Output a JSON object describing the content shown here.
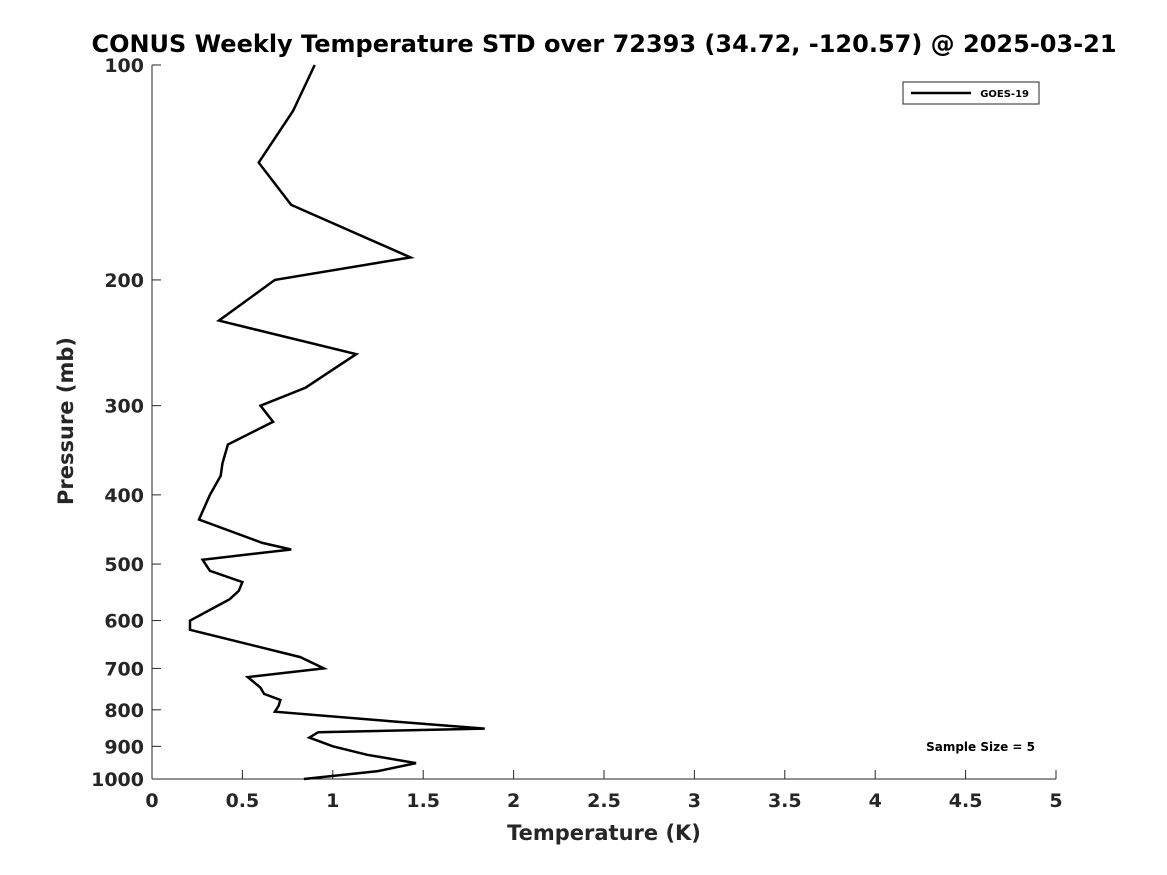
{
  "chart_data": {
    "type": "line",
    "title": "CONUS Weekly Temperature STD over 72393 (34.72, -120.57) @ 2025-03-21",
    "xlabel": "Temperature (K)",
    "ylabel": "Pressure (mb)",
    "xlim": [
      0,
      5
    ],
    "ylim": [
      100,
      1000
    ],
    "yscale": "log",
    "y_reversed": true,
    "xticks": [
      "0",
      "0.5",
      "1",
      "1.5",
      "2",
      "2.5",
      "3",
      "3.5",
      "4",
      "4.5",
      "5"
    ],
    "yticks": [
      "100",
      "200",
      "300",
      "400",
      "500",
      "600",
      "700",
      "800",
      "900",
      "1000"
    ],
    "legend": {
      "location": "top-right",
      "entries": [
        "GOES-19"
      ]
    },
    "annotation": "Sample Size = 5",
    "line_color": "#000000",
    "series": [
      {
        "name": "GOES-19",
        "x": [
          0.9,
          0.78,
          0.59,
          0.77,
          1.43,
          0.68,
          0.37,
          1.13,
          1.01,
          0.85,
          0.6,
          0.67,
          0.42,
          0.39,
          0.38,
          0.32,
          0.26,
          0.61,
          0.77,
          0.28,
          0.32,
          0.5,
          0.48,
          0.43,
          0.21,
          0.21,
          0.82,
          0.95,
          0.53,
          0.6,
          0.62,
          0.71,
          0.7,
          0.68,
          1.32,
          1.84,
          0.92,
          0.87,
          1.0,
          1.19,
          1.46,
          1.25,
          0.84
        ],
        "y": [
          100,
          116,
          137,
          157,
          186,
          200,
          228,
          254,
          266,
          283,
          300,
          316,
          340,
          361,
          376,
          400,
          433,
          467,
          477,
          493,
          511,
          530,
          545,
          560,
          600,
          618,
          675,
          700,
          720,
          745,
          760,
          775,
          790,
          805,
          830,
          850,
          860,
          875,
          900,
          925,
          950,
          975,
          1000
        ]
      }
    ]
  }
}
